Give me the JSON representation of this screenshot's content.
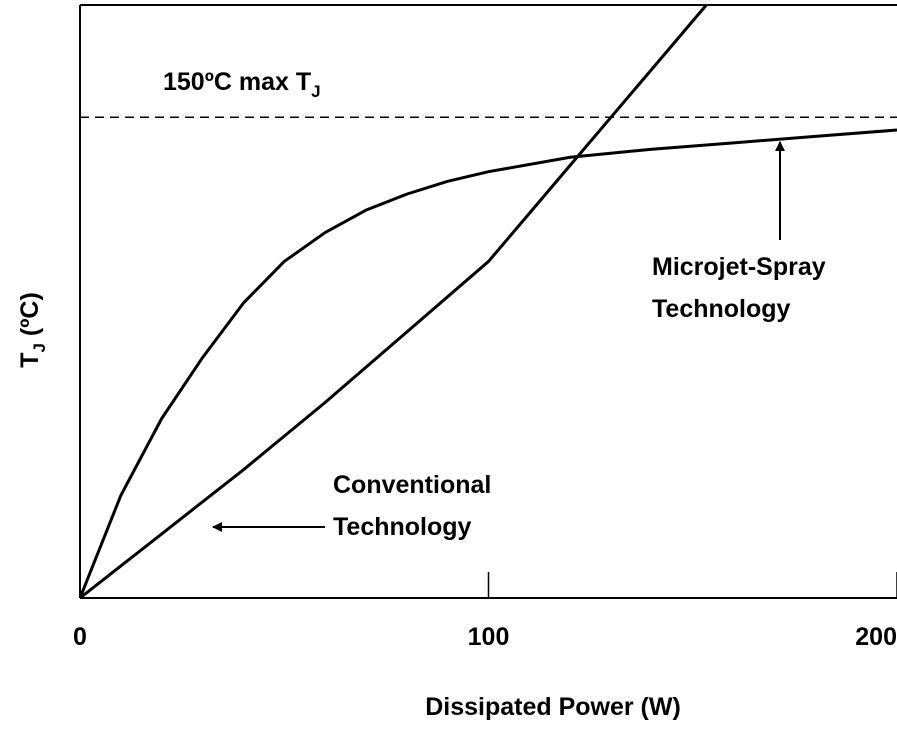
{
  "chart_data": {
    "type": "line",
    "xlabel": "Dissipated Power (W)",
    "ylabel": [
      "T",
      "J",
      " (ºC)"
    ],
    "xlim": [
      0,
      200
    ],
    "xticks": [
      0,
      100,
      200
    ],
    "ylim": [
      0,
      185
    ],
    "hline": {
      "value": 150,
      "label": "150ºC max T",
      "label_sub": "J"
    },
    "series": [
      {
        "name": "Microjet-Spray Technology",
        "label_lines": [
          "Microjet-Spray",
          "Technology"
        ],
        "color": "#000000",
        "x": [
          0,
          10,
          20,
          30,
          40,
          50,
          60,
          70,
          80,
          90,
          100,
          120,
          140,
          160,
          180,
          200
        ],
        "values": [
          0,
          32,
          56,
          75,
          92,
          105,
          114,
          121,
          126,
          130,
          133,
          137.5,
          140,
          142,
          144,
          146
        ]
      },
      {
        "name": "Conventional Technology",
        "label_lines": [
          "Conventional",
          "Technology"
        ],
        "color": "#000000",
        "x": [
          0,
          20,
          40,
          60,
          80,
          100,
          110,
          120,
          130,
          140,
          150,
          160
        ],
        "values": [
          0,
          20,
          40,
          61,
          83,
          105,
          120,
          135,
          150,
          165,
          180,
          195
        ]
      }
    ]
  }
}
